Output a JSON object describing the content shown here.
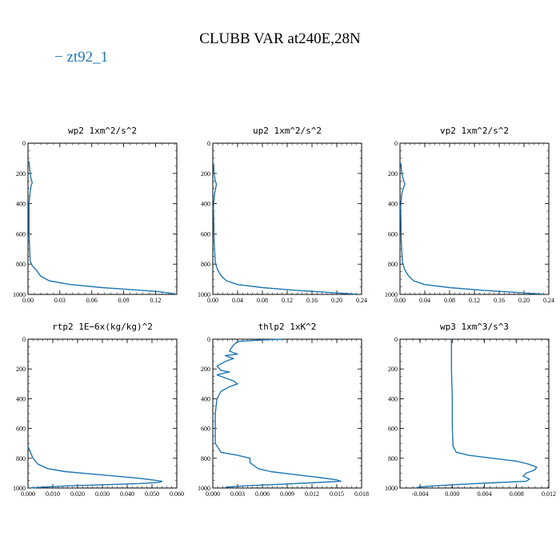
{
  "title": "CLUBB VAR at240E,28N",
  "legend": [
    {
      "label": "− zt92_1",
      "color": "#1f77b4"
    }
  ],
  "series_color": "#1f77b4",
  "chart_data": [
    {
      "type": "line",
      "title": "wp2  1xm^2/s^2",
      "xticks": [
        "0.00",
        "0.03",
        "0.06",
        "0.09",
        "0.12"
      ],
      "xtick_values": [
        0,
        0.03,
        0.06,
        0.09,
        0.12
      ],
      "xlim": [
        0,
        0.14
      ],
      "yticks": [
        "0",
        "200",
        "400",
        "600",
        "800",
        "1000"
      ],
      "ytick_values": [
        0,
        200,
        400,
        600,
        800,
        1000
      ],
      "ylim": [
        0,
        1000
      ],
      "y_inverted": true,
      "series": [
        {
          "name": "zt92_1",
          "points": [
            [
              0.001,
              120
            ],
            [
              0.002,
              200
            ],
            [
              0.003,
              240
            ],
            [
              0.004,
              260
            ],
            [
              0.003,
              280
            ],
            [
              0.002,
              320
            ],
            [
              0.001,
              400
            ],
            [
              0.001,
              600
            ],
            [
              0.002,
              780
            ],
            [
              0.004,
              810
            ],
            [
              0.008,
              840
            ],
            [
              0.012,
              880
            ],
            [
              0.02,
              910
            ],
            [
              0.04,
              935
            ],
            [
              0.07,
              955
            ],
            [
              0.1,
              970
            ],
            [
              0.12,
              980
            ],
            [
              0.132,
              990
            ],
            [
              0.138,
              997
            ]
          ]
        }
      ]
    },
    {
      "type": "line",
      "title": "up2  1xm^2/s^2",
      "xticks": [
        "0.00",
        "0.04",
        "0.08",
        "0.12",
        "0.16",
        "0.20",
        "0.24"
      ],
      "xtick_values": [
        0,
        0.04,
        0.08,
        0.12,
        0.16,
        0.2,
        0.24
      ],
      "xlim": [
        0,
        0.24
      ],
      "yticks": [
        "0",
        "200",
        "400",
        "600",
        "800",
        "1000"
      ],
      "ytick_values": [
        0,
        200,
        400,
        600,
        800,
        1000
      ],
      "ylim": [
        0,
        1000
      ],
      "y_inverted": true,
      "series": [
        {
          "name": "zt92_1",
          "points": [
            [
              0.001,
              130
            ],
            [
              0.002,
              200
            ],
            [
              0.004,
              250
            ],
            [
              0.006,
              270
            ],
            [
              0.005,
              290
            ],
            [
              0.003,
              330
            ],
            [
              0.001,
              420
            ],
            [
              0.002,
              650
            ],
            [
              0.004,
              790
            ],
            [
              0.008,
              840
            ],
            [
              0.014,
              880
            ],
            [
              0.022,
              910
            ],
            [
              0.04,
              935
            ],
            [
              0.08,
              955
            ],
            [
              0.13,
              972
            ],
            [
              0.18,
              985
            ],
            [
              0.21,
              993
            ],
            [
              0.23,
              998
            ]
          ]
        }
      ]
    },
    {
      "type": "line",
      "title": "vp2  1xm^2/s^2",
      "xticks": [
        "0.00",
        "0.04",
        "0.08",
        "0.12",
        "0.16",
        "0.20",
        "0.24"
      ],
      "xtick_values": [
        0,
        0.04,
        0.08,
        0.12,
        0.16,
        0.2,
        0.24
      ],
      "xlim": [
        0,
        0.24
      ],
      "yticks": [
        "0",
        "200",
        "400",
        "600",
        "800",
        "1000"
      ],
      "ytick_values": [
        0,
        200,
        400,
        600,
        800,
        1000
      ],
      "ylim": [
        0,
        1000
      ],
      "y_inverted": true,
      "series": [
        {
          "name": "zt92_1",
          "points": [
            [
              0.001,
              130
            ],
            [
              0.003,
              200
            ],
            [
              0.006,
              250
            ],
            [
              0.008,
              270
            ],
            [
              0.006,
              290
            ],
            [
              0.003,
              330
            ],
            [
              0.001,
              420
            ],
            [
              0.002,
              650
            ],
            [
              0.004,
              790
            ],
            [
              0.008,
              840
            ],
            [
              0.014,
              880
            ],
            [
              0.022,
              910
            ],
            [
              0.04,
              935
            ],
            [
              0.08,
              955
            ],
            [
              0.13,
              972
            ],
            [
              0.18,
              985
            ],
            [
              0.21,
              993
            ],
            [
              0.23,
              998
            ]
          ]
        }
      ]
    },
    {
      "type": "line",
      "title": "rtp2  1E−6x(kg/kg)^2",
      "xticks": [
        "0.000",
        "0.010",
        "0.020",
        "0.030",
        "0.040",
        "0.050",
        "0.060"
      ],
      "xtick_values": [
        0,
        0.01,
        0.02,
        0.03,
        0.04,
        0.05,
        0.06
      ],
      "xlim": [
        0,
        0.06
      ],
      "yticks": [
        "0",
        "200",
        "400",
        "600",
        "800",
        "1000"
      ],
      "ytick_values": [
        0,
        200,
        400,
        600,
        800,
        1000
      ],
      "ylim": [
        0,
        1000
      ],
      "y_inverted": true,
      "series": [
        {
          "name": "zt92_1",
          "points": [
            [
              0,
              720
            ],
            [
              0.001,
              760
            ],
            [
              0.002,
              800
            ],
            [
              0.004,
              840
            ],
            [
              0.008,
              870
            ],
            [
              0.015,
              890
            ],
            [
              0.025,
              905
            ],
            [
              0.035,
              920
            ],
            [
              0.045,
              935
            ],
            [
              0.05,
              945
            ],
            [
              0.054,
              955
            ],
            [
              0.053,
              962
            ],
            [
              0.045,
              970
            ],
            [
              0.03,
              978
            ],
            [
              0.015,
              986
            ],
            [
              0.005,
              995
            ],
            [
              0.001,
              1000
            ]
          ]
        }
      ]
    },
    {
      "type": "line",
      "title": "thlp2  1xK^2",
      "xticks": [
        "0.000",
        "0.003",
        "0.006",
        "0.009",
        "0.012",
        "0.015",
        "0.018"
      ],
      "xtick_values": [
        0,
        0.003,
        0.006,
        0.009,
        0.012,
        0.015,
        0.018
      ],
      "xlim": [
        0,
        0.018
      ],
      "yticks": [
        "0",
        "200",
        "400",
        "600",
        "800",
        "1000"
      ],
      "ytick_values": [
        0,
        200,
        400,
        600,
        800,
        1000
      ],
      "ylim": [
        0,
        1000
      ],
      "y_inverted": true,
      "series": [
        {
          "name": "zt92_1",
          "points": [
            [
              0.0085,
              0
            ],
            [
              0.006,
              5
            ],
            [
              0.003,
              15
            ],
            [
              0.0025,
              40
            ],
            [
              0.002,
              80
            ],
            [
              0.003,
              100
            ],
            [
              0.0015,
              110
            ],
            [
              0.0025,
              130
            ],
            [
              0.0015,
              150
            ],
            [
              0.0005,
              180
            ],
            [
              0.001,
              210
            ],
            [
              0.002,
              220
            ],
            [
              0.0005,
              240
            ],
            [
              0.0015,
              260
            ],
            [
              0.0025,
              280
            ],
            [
              0.003,
              300
            ],
            [
              0.002,
              320
            ],
            [
              0.001,
              350
            ],
            [
              0.0005,
              400
            ],
            [
              0.0003,
              500
            ],
            [
              0.0003,
              600
            ],
            [
              0.0003,
              700
            ],
            [
              0.001,
              760
            ],
            [
              0.003,
              780
            ],
            [
              0.0045,
              800
            ],
            [
              0.0045,
              830
            ],
            [
              0.005,
              850
            ],
            [
              0.0055,
              870
            ],
            [
              0.007,
              890
            ],
            [
              0.01,
              910
            ],
            [
              0.013,
              930
            ],
            [
              0.015,
              945
            ],
            [
              0.0155,
              955
            ],
            [
              0.012,
              965
            ],
            [
              0.008,
              975
            ],
            [
              0.004,
              985
            ],
            [
              0.0015,
              995
            ]
          ]
        }
      ]
    },
    {
      "type": "line",
      "title": "wp3  1xm^3/s^3",
      "xticks": [
        "-0.004",
        "0.000",
        "0.004",
        "0.008",
        "0.012"
      ],
      "xtick_values": [
        -0.004,
        0,
        0.004,
        0.008,
        0.012
      ],
      "xlim": [
        -0.0065,
        0.012
      ],
      "yticks": [
        "0",
        "200",
        "400",
        "600",
        "800",
        "1000"
      ],
      "ytick_values": [
        0,
        200,
        400,
        600,
        800,
        1000
      ],
      "ylim": [
        0,
        1000
      ],
      "y_inverted": true,
      "series": [
        {
          "name": "zt92_1",
          "points": [
            [
              -0.0001,
              0
            ],
            [
              -0.0001,
              200
            ],
            [
              0,
              400
            ],
            [
              0,
              600
            ],
            [
              0.0001,
              720
            ],
            [
              0.0005,
              760
            ],
            [
              0.002,
              780
            ],
            [
              0.005,
              800
            ],
            [
              0.008,
              820
            ],
            [
              0.0095,
              840
            ],
            [
              0.0105,
              860
            ],
            [
              0.0102,
              880
            ],
            [
              0.0092,
              900
            ],
            [
              0.0088,
              920
            ],
            [
              0.0096,
              940
            ],
            [
              0.0092,
              955
            ],
            [
              0.005,
              965
            ],
            [
              0.001,
              975
            ],
            [
              -0.002,
              985
            ],
            [
              -0.004,
              993
            ],
            [
              -0.0045,
              998
            ]
          ]
        }
      ]
    }
  ]
}
